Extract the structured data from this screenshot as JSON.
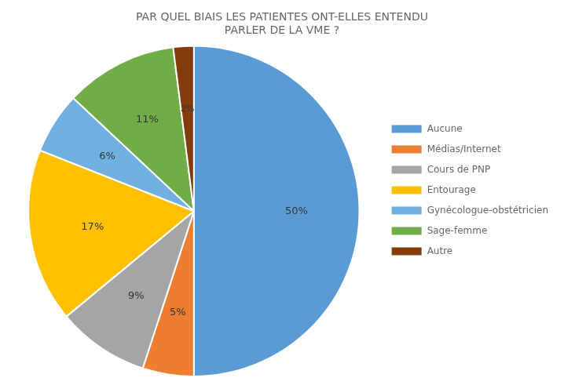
{
  "chart_data": {
    "type": "pie",
    "title": "PAR QUEL BIAIS LES PATIENTES ONT-ELLES ENTENDU\nPARLER DE LA VME ?",
    "categories": [
      "Aucune",
      "Médias/Internet",
      "Cours de PNP",
      "Entourage",
      "Gynécologue-obstétricien",
      "Sage-femme",
      "Autre"
    ],
    "values": [
      50,
      5,
      9,
      17,
      6,
      11,
      2
    ],
    "value_labels": [
      "50%",
      "5%",
      "9%",
      "17%",
      "6%",
      "11%",
      "2%"
    ],
    "data_labels": true,
    "colors": [
      "#5B9BD5",
      "#ED7D31",
      "#A5A5A5",
      "#FFC000",
      "#70B0E0",
      "#70AD47",
      "#843C0C"
    ],
    "legend": "right"
  }
}
